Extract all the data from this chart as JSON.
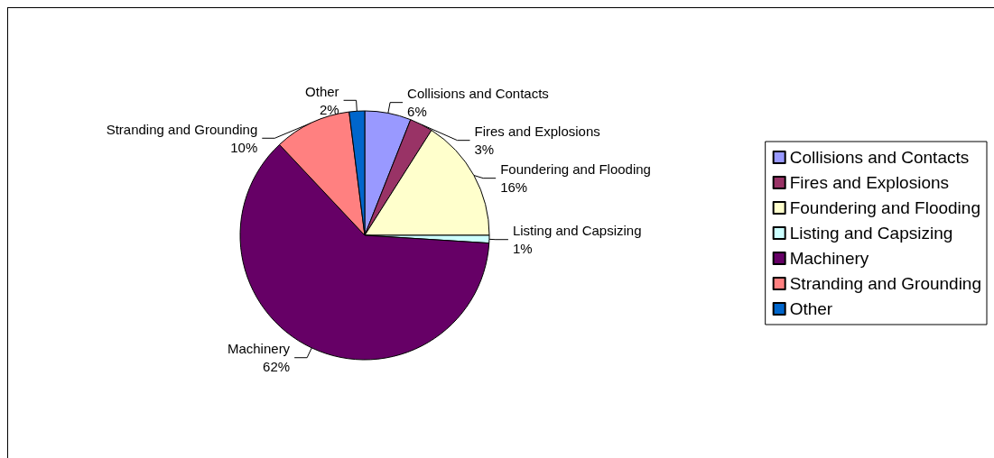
{
  "chart_data": {
    "type": "pie",
    "categories": [
      "Collisions and Contacts",
      "Fires and Explosions",
      "Foundering and Flooding",
      "Listing and Capsizing",
      "Machinery",
      "Stranding and Grounding",
      "Other"
    ],
    "values": [
      6,
      3,
      16,
      1,
      62,
      10,
      2
    ],
    "colors": [
      "#9999ff",
      "#993366",
      "#ffffcc",
      "#ccffff",
      "#660066",
      "#ff8080",
      "#0066cc"
    ],
    "value_labels": [
      "6%",
      "3%",
      "16%",
      "1%",
      "62%",
      "10%",
      "2%"
    ],
    "legend": "right"
  }
}
